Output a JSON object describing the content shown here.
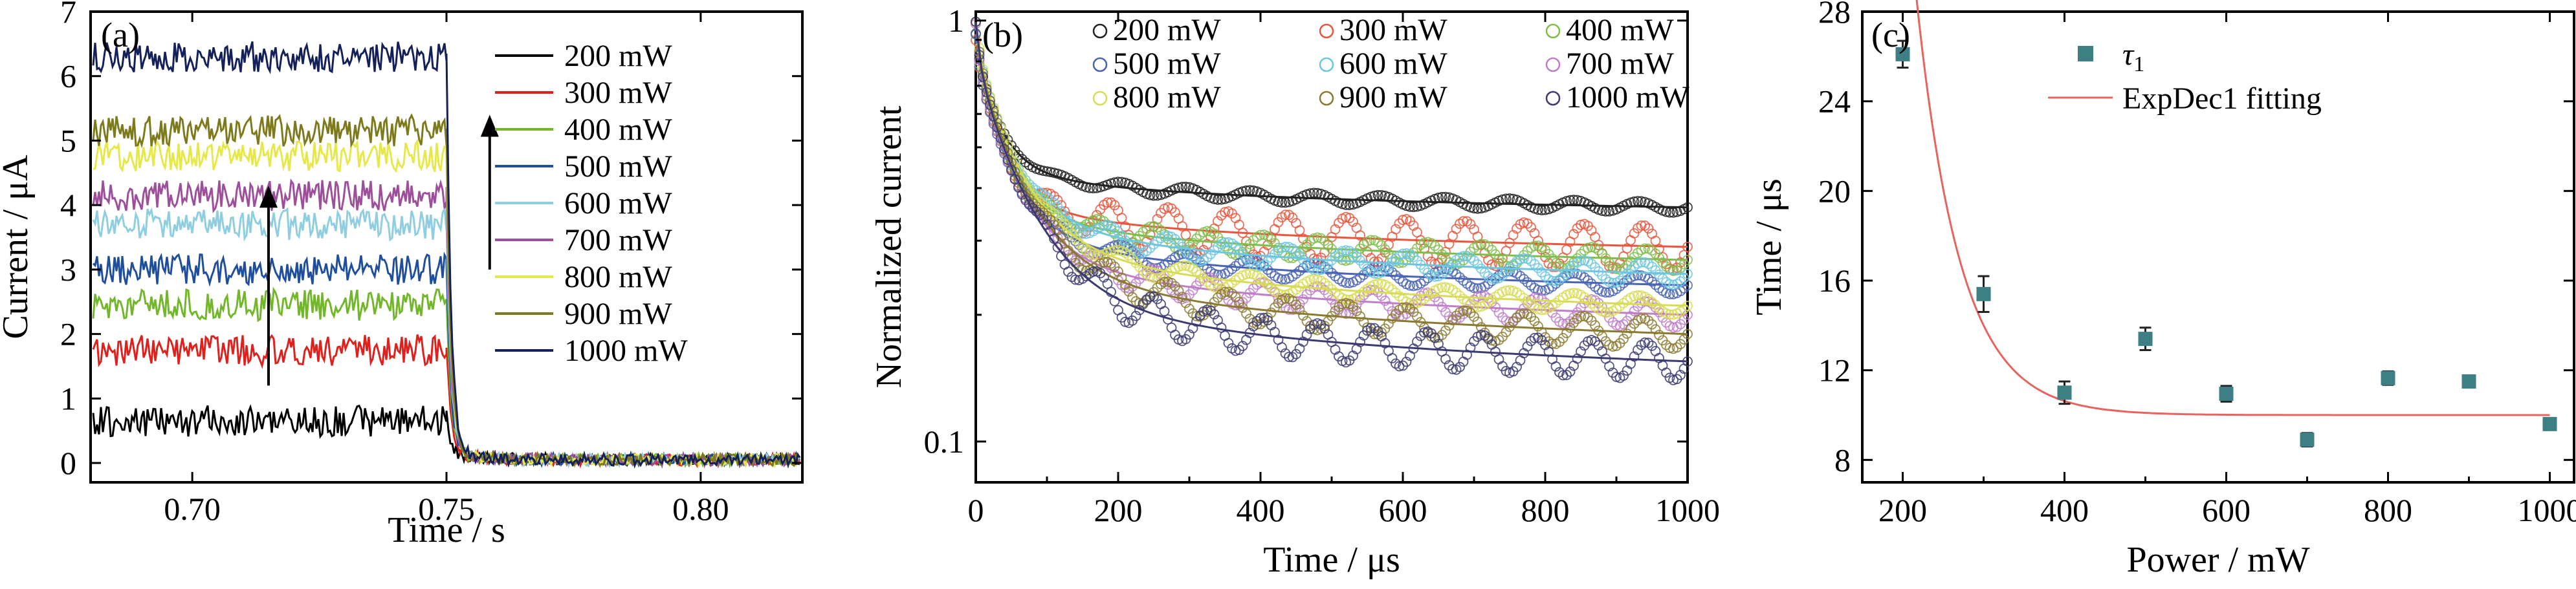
{
  "chart_data": [
    {
      "type": "line",
      "panel_label": "(a)",
      "xlabel": "Time / s",
      "ylabel": "Current / μA",
      "xlim": [
        0.68,
        0.82
      ],
      "ylim": [
        -0.3,
        7
      ],
      "xticks": [
        0.7,
        0.75,
        0.8
      ],
      "xtick_labels": [
        "0.70",
        "0.75",
        "0.80"
      ],
      "yticks": [
        0,
        1,
        2,
        3,
        4,
        5,
        6,
        7
      ],
      "ytick_labels": [
        "0",
        "1",
        "2",
        "3",
        "4",
        "5",
        "6",
        "7"
      ],
      "light_off_time": 0.75,
      "arrow_y_range": [
        1.2,
        4.3
      ],
      "legend_position": "right",
      "grid": false,
      "series": [
        {
          "name": "200 mW",
          "on_current": 0.65,
          "off_current": 0.05,
          "color": "#000000"
        },
        {
          "name": "300 mW",
          "on_current": 1.75,
          "off_current": 0.05,
          "color": "#e0201c"
        },
        {
          "name": "400 mW",
          "on_current": 2.45,
          "off_current": 0.05,
          "color": "#72b62a"
        },
        {
          "name": "500 mW",
          "on_current": 3.0,
          "off_current": 0.05,
          "color": "#1f4e9c"
        },
        {
          "name": "600 mW",
          "on_current": 3.7,
          "off_current": 0.05,
          "color": "#8fcde0"
        },
        {
          "name": "700 mW",
          "on_current": 4.15,
          "off_current": 0.05,
          "color": "#9e4f9c"
        },
        {
          "name": "800 mW",
          "on_current": 4.75,
          "off_current": 0.05,
          "color": "#e6e84a"
        },
        {
          "name": "900 mW",
          "on_current": 5.15,
          "off_current": 0.05,
          "color": "#7d7a1c"
        },
        {
          "name": "1000 mW",
          "on_current": 6.3,
          "off_current": 0.05,
          "color": "#14205a"
        }
      ]
    },
    {
      "type": "line",
      "panel_label": "(b)",
      "xlabel": "Time / μs",
      "ylabel": "Normalized current",
      "xlim": [
        0,
        1000
      ],
      "ylim": [
        0.08,
        1.05
      ],
      "yscale": "log",
      "xticks": [
        0,
        200,
        400,
        600,
        800,
        1000
      ],
      "xtick_labels": [
        "0",
        "200",
        "400",
        "600",
        "800",
        "1000"
      ],
      "yticks": [
        0.1,
        1
      ],
      "ytick_labels": [
        "0.1",
        "1"
      ],
      "legend_position": "top",
      "grid": false,
      "series": [
        {
          "name": "200 mW",
          "end_value": 0.36,
          "amplitude": 0.03,
          "color": "#222222"
        },
        {
          "name": "300 mW",
          "end_value": 0.29,
          "amplitude": 0.12,
          "color": "#e8553c"
        },
        {
          "name": "400 mW",
          "end_value": 0.27,
          "amplitude": 0.06,
          "color": "#7fbe4a"
        },
        {
          "name": "500 mW",
          "end_value": 0.235,
          "amplitude": 0.05,
          "color": "#4a64b4"
        },
        {
          "name": "600 mW",
          "end_value": 0.25,
          "amplitude": 0.06,
          "color": "#6cc6e0"
        },
        {
          "name": "700 mW",
          "end_value": 0.2,
          "amplitude": 0.07,
          "color": "#c07ec8"
        },
        {
          "name": "800 mW",
          "end_value": 0.21,
          "amplitude": 0.05,
          "color": "#d8dc52"
        },
        {
          "name": "900 mW",
          "end_value": 0.18,
          "amplitude": 0.08,
          "color": "#8a7a30"
        },
        {
          "name": "1000 mW",
          "end_value": 0.155,
          "amplitude": 0.1,
          "color": "#3a3a70"
        }
      ]
    },
    {
      "type": "scatter",
      "panel_label": "(c)",
      "xlabel": "Power / mW",
      "ylabel": "Time / μs",
      "xlim": [
        150,
        1030
      ],
      "ylim": [
        7,
        28
      ],
      "xticks": [
        200,
        400,
        600,
        800,
        1000
      ],
      "xtick_labels": [
        "200",
        "400",
        "600",
        "800",
        "1000"
      ],
      "yticks": [
        8,
        12,
        16,
        20,
        24,
        28
      ],
      "ytick_labels": [
        "8",
        "12",
        "16",
        "20",
        "24",
        "28"
      ],
      "legend_position": "top-center",
      "grid": false,
      "series": [
        {
          "name": "τ1",
          "label_main": "τ",
          "label_sub": "1",
          "color": "#3e7f86",
          "x": [
            200,
            300,
            400,
            500,
            600,
            700,
            800,
            900,
            1000
          ],
          "y": [
            26.1,
            15.4,
            11.0,
            13.4,
            10.95,
            8.9,
            11.65,
            11.5,
            9.6
          ],
          "err": [
            0.6,
            0.8,
            0.5,
            0.5,
            0.35,
            0.3,
            0.3,
            0.25,
            0.25
          ]
        },
        {
          "name": "ExpDec1 fitting",
          "color": "#e8635e",
          "model": "y0 + A*exp(-x/t)",
          "params": {
            "y0": 10.0,
            "A": 1035,
            "t": 54
          }
        }
      ]
    }
  ]
}
